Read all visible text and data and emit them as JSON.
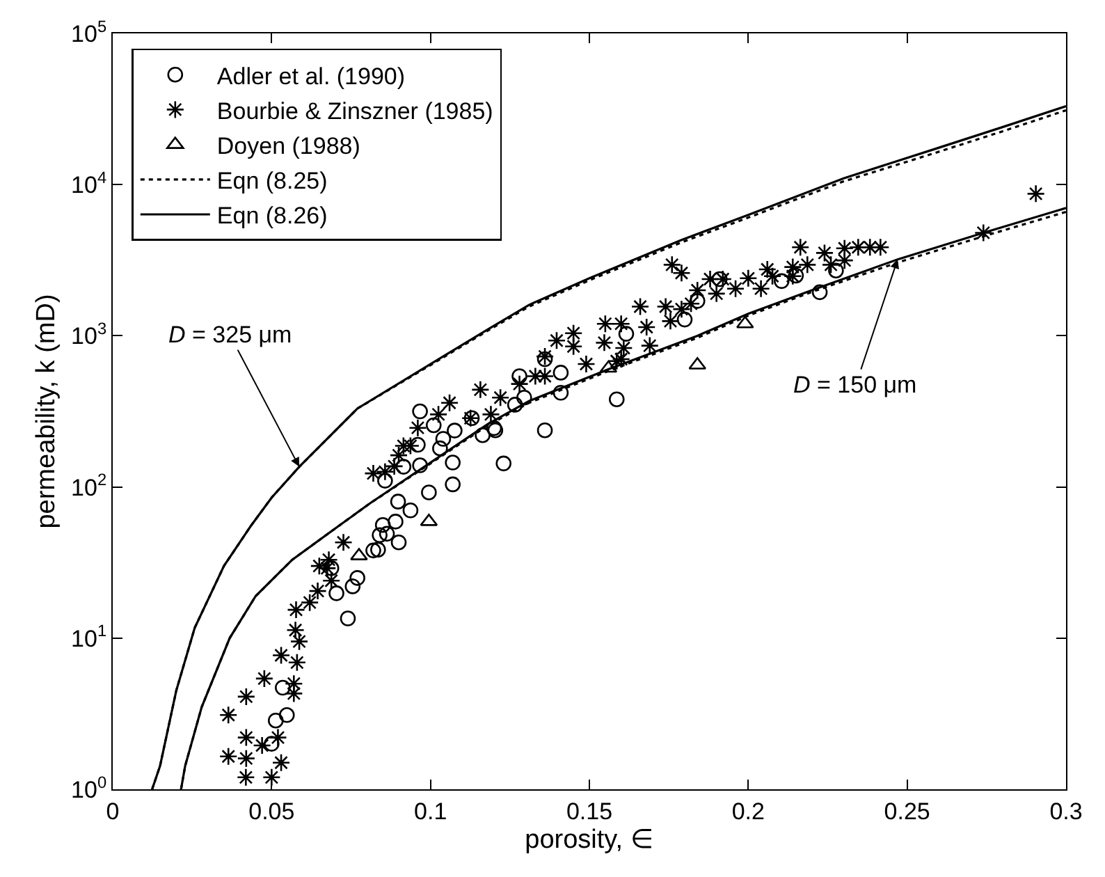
{
  "chart_data": {
    "type": "scatter",
    "xlabel": "porosity, ∈",
    "ylabel": "permeability, k (mD)",
    "xlim": [
      0,
      0.3
    ],
    "xticks": [
      0,
      0.05,
      0.1,
      0.15,
      0.2,
      0.25,
      0.3
    ],
    "ylim": [
      1,
      100000
    ],
    "yticks": [
      {
        "value": 1,
        "label": "10$^{0}$"
      },
      {
        "value": 10,
        "label": "10$^{1}$"
      },
      {
        "value": 100,
        "label": "10$^{2}$"
      },
      {
        "value": 1000,
        "label": "10$^{3}$"
      },
      {
        "value": 10000,
        "label": "10$^{4}$"
      },
      {
        "value": 100000,
        "label": "10$^{5}$"
      }
    ],
    "log": "y",
    "legend": "top left",
    "series": [
      {
        "name": "Adler et al. (1990)",
        "marker": "circle",
        "color": "#000000",
        "x": [
          0.0535,
          0.0513,
          0.0548,
          0.05,
          0.0704,
          0.074,
          0.0755,
          0.077,
          0.0688,
          0.082,
          0.084,
          0.0835,
          0.09,
          0.0863,
          0.085,
          0.089,
          0.0937,
          0.0898,
          0.0995,
          0.107,
          0.107,
          0.123,
          0.0967,
          0.0915,
          0.0857,
          0.103,
          0.104,
          0.0967,
          0.101,
          0.1076,
          0.1164,
          0.12,
          0.1266,
          0.128,
          0.113,
          0.096,
          0.1204,
          0.1295,
          0.136,
          0.136,
          0.141,
          0.141,
          0.1586,
          0.1616,
          0.18,
          0.184,
          0.191,
          0.2105,
          0.215,
          0.2225,
          0.2276
        ],
        "values": [
          4.7,
          2.85,
          3.1,
          2.0,
          19.8,
          13.5,
          22,
          25,
          29,
          38,
          48,
          38.5,
          43,
          49,
          56,
          59,
          70,
          80,
          92,
          104,
          145,
          143,
          139,
          136,
          110,
          180,
          208,
          316,
          256,
          236,
          220,
          245,
          350,
          540,
          285,
          190,
          237,
          390,
          237,
          700,
          570,
          420,
          380,
          1030,
          1280,
          1700,
          2370,
          2300,
          2500,
          1940,
          2700
        ]
      },
      {
        "name": "Bourbie & Zinszner (1985)",
        "marker": "cross",
        "color": "#000000",
        "x": [
          0.0419,
          0.05,
          0.0364,
          0.042,
          0.042,
          0.047,
          0.052,
          0.053,
          0.0364,
          0.042,
          0.0477,
          0.053,
          0.058,
          0.057,
          0.057,
          0.0575,
          0.0587,
          0.0577,
          0.062,
          0.0645,
          0.065,
          0.0726,
          0.068,
          0.0675,
          0.0688,
          0.082,
          0.0857,
          0.0886,
          0.09,
          0.0915,
          0.0937,
          0.096,
          0.1025,
          0.106,
          0.1126,
          0.1157,
          0.119,
          0.122,
          0.128,
          0.133,
          0.136,
          0.136,
          0.1397,
          0.145,
          0.145,
          0.149,
          0.1547,
          0.155,
          0.16,
          0.1608,
          0.16,
          0.1586,
          0.166,
          0.168,
          0.169,
          0.174,
          0.1755,
          0.176,
          0.179,
          0.179,
          0.182,
          0.184,
          0.188,
          0.192,
          0.19,
          0.196,
          0.2,
          0.204,
          0.206,
          0.2076,
          0.214,
          0.214,
          0.2186,
          0.2164,
          0.224,
          0.226,
          0.2303,
          0.2303,
          0.2346,
          0.2383,
          0.2416,
          0.274,
          0.2905
        ],
        "values": [
          1.2,
          1.2,
          1.65,
          2.2,
          1.6,
          1.95,
          2.2,
          1.5,
          3.1,
          4.1,
          5.4,
          7.7,
          6.9,
          5.0,
          4.3,
          11.3,
          9.5,
          15.4,
          17.2,
          20.5,
          30,
          43,
          33,
          29,
          24,
          123,
          126,
          137,
          162,
          187,
          187,
          246,
          302,
          360,
          285,
          440,
          302,
          390,
          480,
          540,
          540,
          730,
          930,
          1040,
          850,
          650,
          900,
          1200,
          1200,
          830,
          700,
          680,
          1560,
          1140,
          860,
          1560,
          1250,
          2950,
          2600,
          1500,
          1630,
          2000,
          2370,
          2370,
          1900,
          2050,
          2400,
          2050,
          2750,
          2480,
          2850,
          2480,
          2950,
          3850,
          3530,
          2950,
          3790,
          3150,
          3850,
          3850,
          3850,
          4800,
          8700
        ]
      },
      {
        "name": "Doyen (1988)",
        "marker": "triangle",
        "color": "#000000",
        "x": [
          0.0775,
          0.0995,
          0.156,
          0.184,
          0.199
        ],
        "values": [
          35,
          59,
          610,
          640,
          1200
        ]
      },
      {
        "name": "Eqn (8.25)",
        "type": "line",
        "line_style": "dotted",
        "color": "#000000",
        "x": [
          0.0124,
          0.0149,
          0.02,
          0.0258,
          0.035,
          0.0434,
          0.05,
          0.0587,
          0.077,
          0.1,
          0.118,
          0.131,
          0.15,
          0.179,
          0.2,
          0.23,
          0.258,
          0.28,
          0.3
        ],
        "values": [
          1,
          1.43,
          4.5,
          11.7,
          30,
          55,
          85,
          136,
          330,
          640,
          1080,
          1560,
          2330,
          4150,
          6050,
          10500,
          16000,
          22500,
          31000
        ]
      },
      {
        "name": "Eqn (8.26)",
        "type": "line",
        "line_style": "solid",
        "color": "#000000",
        "x": [
          0.0124,
          0.0149,
          0.02,
          0.0258,
          0.035,
          0.0434,
          0.05,
          0.0587,
          0.077,
          0.1,
          0.118,
          0.131,
          0.15,
          0.179,
          0.2,
          0.23,
          0.258,
          0.28,
          0.3
        ],
        "values": [
          1,
          1.43,
          4.5,
          11.7,
          30,
          55,
          85,
          136,
          330,
          650,
          1100,
          1600,
          2400,
          4300,
          6300,
          11000,
          17000,
          24000,
          33000
        ]
      },
      {
        "type": "line",
        "line_style": "dotted",
        "color": "#000000",
        "x": [
          0.0215,
          0.0228,
          0.028,
          0.0368,
          0.045,
          0.0565,
          0.071,
          0.081,
          0.1,
          0.118,
          0.131,
          0.156,
          0.184,
          0.2,
          0.22,
          0.247,
          0.274,
          0.3
        ],
        "values": [
          1,
          1.43,
          3.5,
          10,
          19,
          33,
          55,
          78,
          143,
          255,
          360,
          585,
          970,
          1360,
          1950,
          3050,
          4550,
          6600
        ]
      },
      {
        "type": "line",
        "line_style": "solid",
        "color": "#000000",
        "x": [
          0.0215,
          0.0228,
          0.028,
          0.0368,
          0.045,
          0.0565,
          0.071,
          0.081,
          0.1,
          0.118,
          0.131,
          0.156,
          0.184,
          0.2,
          0.22,
          0.247,
          0.274,
          0.3
        ],
        "values": [
          1,
          1.43,
          3.5,
          10,
          19,
          33,
          55,
          78,
          145,
          260,
          370,
          600,
          1000,
          1400,
          2000,
          3200,
          4800,
          7000
        ]
      }
    ],
    "annotations": [
      {
        "text": "D = 325 μm",
        "x": 0.0587,
        "y": 136
      },
      {
        "text": "D = 150 μm",
        "x": 0.247,
        "y": 3200
      }
    ]
  }
}
